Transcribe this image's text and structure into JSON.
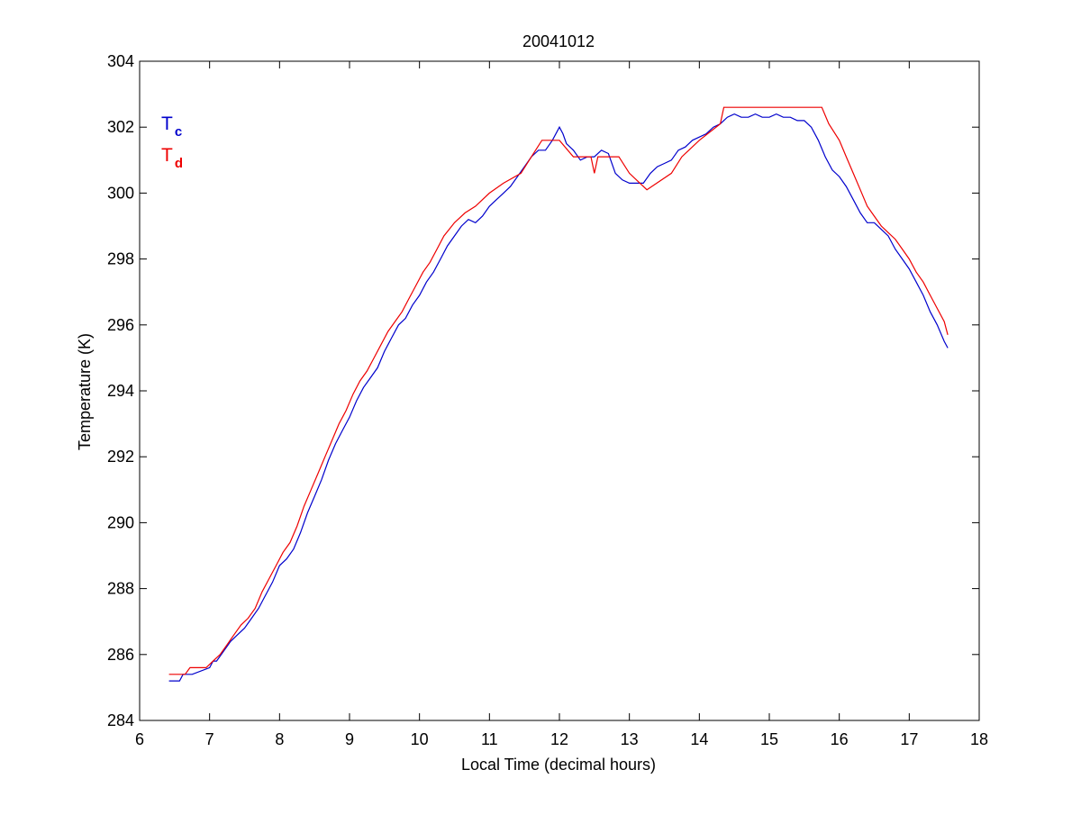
{
  "chart_data": {
    "type": "line",
    "title": "20041012",
    "xlabel": "Local Time (decimal hours)",
    "ylabel": "Temperature (K)",
    "xlim": [
      6,
      18
    ],
    "ylim": [
      284,
      304
    ],
    "x_ticks": [
      6,
      7,
      8,
      9,
      10,
      11,
      12,
      13,
      14,
      15,
      16,
      17,
      18
    ],
    "y_ticks": [
      284,
      286,
      288,
      290,
      292,
      294,
      296,
      298,
      300,
      302,
      304
    ],
    "grid": false,
    "legend": {
      "placement": "top-left",
      "entries": [
        {
          "main": "T",
          "sub": "c",
          "color": "#0000cc"
        },
        {
          "main": "T",
          "sub": "d",
          "color": "#ee0000"
        }
      ]
    },
    "series": [
      {
        "color": "#0000cc",
        "x": [
          6.42,
          6.57,
          6.62,
          6.75,
          7.0,
          7.05,
          7.1,
          7.2,
          7.3,
          7.4,
          7.5,
          7.6,
          7.7,
          7.8,
          7.9,
          8.0,
          8.1,
          8.2,
          8.3,
          8.4,
          8.5,
          8.6,
          8.7,
          8.8,
          8.9,
          9.0,
          9.1,
          9.2,
          9.3,
          9.4,
          9.5,
          9.6,
          9.7,
          9.8,
          9.9,
          10.0,
          10.1,
          10.2,
          10.3,
          10.4,
          10.5,
          10.6,
          10.7,
          10.8,
          10.9,
          11.0,
          11.1,
          11.2,
          11.3,
          11.4,
          11.5,
          11.6,
          11.7,
          11.8,
          11.9,
          12.0,
          12.05,
          12.1,
          12.2,
          12.3,
          12.4,
          12.5,
          12.6,
          12.7,
          12.8,
          12.9,
          13.0,
          13.1,
          13.2,
          13.3,
          13.4,
          13.5,
          13.6,
          13.7,
          13.8,
          13.9,
          14.0,
          14.1,
          14.2,
          14.3,
          14.4,
          14.5,
          14.6,
          14.7,
          14.8,
          14.9,
          15.0,
          15.1,
          15.2,
          15.3,
          15.4,
          15.5,
          15.6,
          15.7,
          15.8,
          15.9,
          16.0,
          16.1,
          16.2,
          16.3,
          16.4,
          16.5,
          16.6,
          16.7,
          16.8,
          16.9,
          17.0,
          17.1,
          17.2,
          17.3,
          17.4,
          17.5,
          17.55
        ],
        "y": [
          285.2,
          285.2,
          285.4,
          285.4,
          285.6,
          285.8,
          285.8,
          286.1,
          286.4,
          286.6,
          286.8,
          287.1,
          287.4,
          287.8,
          288.2,
          288.7,
          288.9,
          289.2,
          289.7,
          290.3,
          290.8,
          291.3,
          291.9,
          292.4,
          292.8,
          293.2,
          293.7,
          294.1,
          294.4,
          294.7,
          295.2,
          295.6,
          296.0,
          296.2,
          296.6,
          296.9,
          297.3,
          297.6,
          298.0,
          298.4,
          298.7,
          299.0,
          299.2,
          299.1,
          299.3,
          299.6,
          299.8,
          300.0,
          300.2,
          300.5,
          300.8,
          301.1,
          301.3,
          301.3,
          301.6,
          302.0,
          301.8,
          301.5,
          301.3,
          301.0,
          301.1,
          301.1,
          301.3,
          301.2,
          300.6,
          300.4,
          300.3,
          300.3,
          300.3,
          300.6,
          300.8,
          300.9,
          301.0,
          301.3,
          301.4,
          301.6,
          301.7,
          301.8,
          302.0,
          302.1,
          302.3,
          302.4,
          302.3,
          302.3,
          302.4,
          302.3,
          302.3,
          302.4,
          302.3,
          302.3,
          302.2,
          302.2,
          302.0,
          301.6,
          301.1,
          300.7,
          300.5,
          300.2,
          299.8,
          299.4,
          299.1,
          299.1,
          298.9,
          298.7,
          298.3,
          298.0,
          297.7,
          297.3,
          296.9,
          296.4,
          296.0,
          295.5,
          295.3
        ]
      },
      {
        "color": "#ee0000",
        "x": [
          6.42,
          6.65,
          6.72,
          6.95,
          7.05,
          7.15,
          7.25,
          7.35,
          7.45,
          7.55,
          7.65,
          7.75,
          7.85,
          7.95,
          8.05,
          8.15,
          8.25,
          8.35,
          8.45,
          8.55,
          8.65,
          8.75,
          8.85,
          8.95,
          9.05,
          9.15,
          9.25,
          9.35,
          9.45,
          9.55,
          9.65,
          9.75,
          9.85,
          9.95,
          10.05,
          10.15,
          10.25,
          10.35,
          10.5,
          10.65,
          10.8,
          11.0,
          11.2,
          11.45,
          11.6,
          11.75,
          12.0,
          12.2,
          12.45,
          12.5,
          12.55,
          12.85,
          13.0,
          13.25,
          13.6,
          13.75,
          14.0,
          14.3,
          14.35,
          15.75,
          15.85,
          16.0,
          16.1,
          16.2,
          16.3,
          16.4,
          16.5,
          16.6,
          16.7,
          16.8,
          16.9,
          17.0,
          17.1,
          17.2,
          17.3,
          17.4,
          17.5,
          17.55
        ],
        "y": [
          285.4,
          285.4,
          285.6,
          285.6,
          285.8,
          286.0,
          286.3,
          286.6,
          286.9,
          287.1,
          287.4,
          287.9,
          288.3,
          288.7,
          289.1,
          289.4,
          289.9,
          290.5,
          291.0,
          291.5,
          292.0,
          292.5,
          293.0,
          293.4,
          293.9,
          294.3,
          294.6,
          295.0,
          295.4,
          295.8,
          296.1,
          296.4,
          296.8,
          297.2,
          297.6,
          297.9,
          298.3,
          298.7,
          299.1,
          299.4,
          299.6,
          300.0,
          300.3,
          300.6,
          301.1,
          301.6,
          301.6,
          301.1,
          301.1,
          300.6,
          301.1,
          301.1,
          300.6,
          300.1,
          300.6,
          301.1,
          301.6,
          302.1,
          302.6,
          302.6,
          302.1,
          301.6,
          301.1,
          300.6,
          300.1,
          299.6,
          299.3,
          299.0,
          298.8,
          298.6,
          298.3,
          298.0,
          297.6,
          297.3,
          296.9,
          296.5,
          296.1,
          295.7
        ]
      }
    ]
  }
}
